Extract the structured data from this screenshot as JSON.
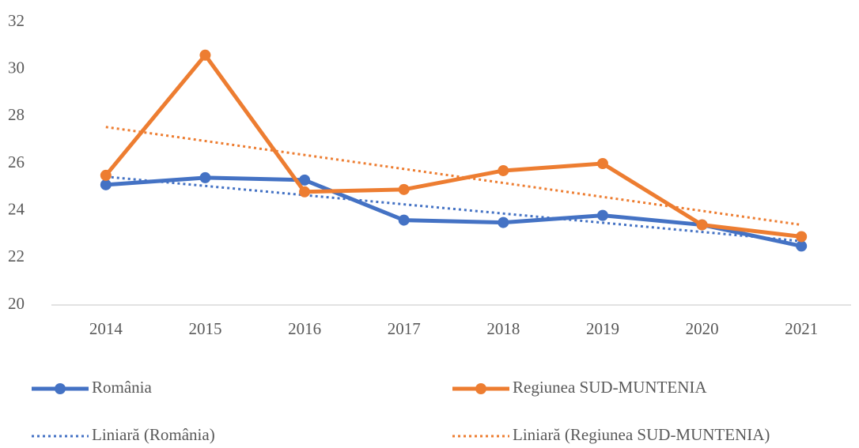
{
  "chart_data": {
    "type": "line",
    "categories": [
      "2014",
      "2015",
      "2016",
      "2017",
      "2018",
      "2019",
      "2020",
      "2021"
    ],
    "series": [
      {
        "name": "România",
        "color": "#4472c4",
        "values": [
          25.1,
          25.4,
          25.3,
          23.6,
          23.5,
          23.8,
          23.4,
          22.5
        ]
      },
      {
        "name": "Regiunea SUD-MUNTENIA",
        "color": "#ed7d31",
        "values": [
          25.5,
          30.6,
          24.8,
          24.9,
          25.7,
          26.0,
          23.4,
          22.9
        ]
      }
    ],
    "trendlines": [
      {
        "name": "Liniară (România)",
        "series": 0,
        "kind": "linear"
      },
      {
        "name": "Liniară (Regiunea SUD-MUNTENIA)",
        "series": 1,
        "kind": "linear"
      }
    ],
    "ylim": [
      20,
      32
    ],
    "yticks": [
      20,
      22,
      24,
      26,
      28,
      30,
      32
    ],
    "grid": false,
    "legend": "bottom"
  }
}
